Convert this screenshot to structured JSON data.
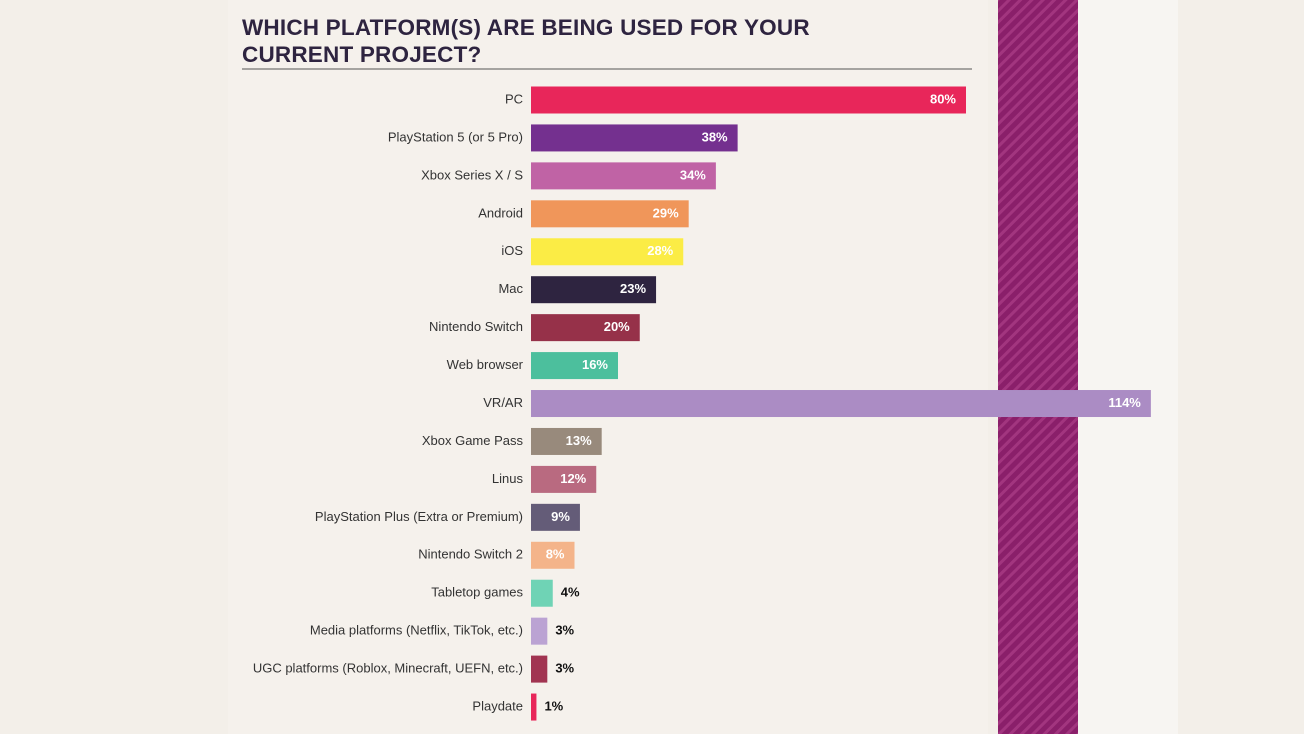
{
  "chart_data": {
    "type": "barh",
    "title": "WHICH PLATFORM(S) ARE BEING USED FOR YOUR CURRENT PROJECT?",
    "categories": [
      "PC",
      "PlayStation 5 (or 5 Pro)",
      "Xbox Series X / S",
      "Android",
      "iOS",
      "Mac",
      "Nintendo Switch",
      "Web browser",
      "VR/AR",
      "Xbox Game Pass",
      "Linus",
      "PlayStation Plus (Extra or Premium)",
      "Nintendo Switch 2",
      "Tabletop games",
      "Media platforms (Netflix, TikTok, etc.)",
      "UGC platforms (Roblox, Minecraft, UEFN, etc.)",
      "Playdate"
    ],
    "values": [
      80,
      38,
      34,
      29,
      28,
      23,
      20,
      16,
      114,
      13,
      12,
      9,
      8,
      4,
      3,
      3,
      1
    ],
    "value_labels": [
      "80%",
      "38%",
      "34%",
      "29%",
      "28%",
      "23%",
      "20%",
      "16%",
      "114%",
      "13%",
      "12%",
      "9%",
      "8%",
      "4%",
      "3%",
      "3%",
      "1%"
    ],
    "colors": [
      "#e8265a",
      "#74308f",
      "#c063a5",
      "#f0965a",
      "#fbec45",
      "#2e2440",
      "#963149",
      "#4cbf9d",
      "#ab8cc4",
      "#988a7c",
      "#b96a80",
      "#645c78",
      "#f4b48a",
      "#6fd3b5",
      "#bba3d3",
      "#a13451",
      "#e8265a"
    ]
  }
}
